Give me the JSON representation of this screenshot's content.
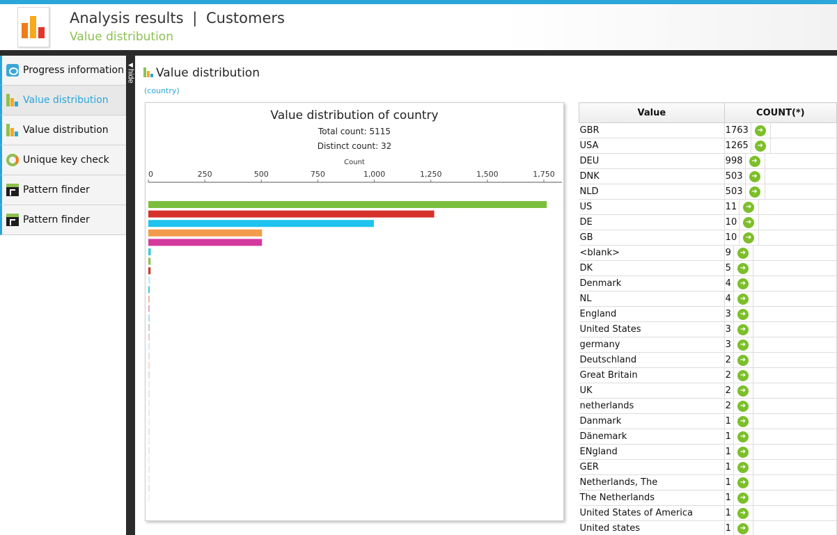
{
  "header": {
    "title": "Analysis results",
    "separator": "|",
    "title_name": "Customers",
    "subtitle": "Value distribution"
  },
  "sidebar": {
    "hide_label": "hide",
    "items": [
      {
        "label": "Progress information",
        "icon": "progress-icon"
      },
      {
        "label": "Value distribution",
        "icon": "value-distribution-icon",
        "active": true
      },
      {
        "label": "Value distribution",
        "icon": "value-distribution-icon"
      },
      {
        "label": "Unique key check",
        "icon": "unique-key-icon"
      },
      {
        "label": "Pattern finder",
        "icon": "pattern-finder-icon"
      },
      {
        "label": "Pattern finder",
        "icon": "pattern-finder-icon"
      }
    ]
  },
  "main": {
    "title": "Value distribution",
    "column": "(country)"
  },
  "chart_data": {
    "type": "bar",
    "orientation": "horizontal",
    "title": "Value distribution of country",
    "subtitle_1": "Total count: 5115",
    "subtitle_2": "Distinct count: 32",
    "xlabel": "Count",
    "xlim": [
      0,
      1800
    ],
    "x_ticks": [
      "0",
      "250",
      "500",
      "750",
      "1,000",
      "1,250",
      "1,500",
      "1,750"
    ],
    "x_tick_values": [
      0,
      250,
      500,
      750,
      1000,
      1250,
      1500,
      1750
    ],
    "values": [
      1763,
      1265,
      998,
      503,
      503,
      11,
      10,
      10,
      9,
      5,
      4,
      4,
      3,
      3,
      3,
      2,
      2,
      2,
      2,
      1,
      1,
      1,
      1,
      1,
      1,
      1,
      1,
      1,
      1,
      1,
      1,
      1
    ],
    "colors": [
      "#7cbf3f",
      "#d6302a",
      "#1ec3ee",
      "#f29b4a",
      "#d43a9e",
      "#3ec7dd",
      "#8cc152",
      "#c43a2a",
      "#cfe8f2",
      "#3ec7dd",
      "#f3b6a0",
      "#e4a7c9",
      "#a9dbe6",
      "#c9c9c9",
      "#e7c6d6",
      "#d6e8f3",
      "#e2e2e2",
      "#f2dcc9",
      "#dcdcdc",
      "#ececec",
      "#e6e6e6",
      "#ededed",
      "#e9e9e9",
      "#efefef",
      "#e4e4e4",
      "#eeeeee",
      "#e8e8e8",
      "#f0f0f0",
      "#eaeaea",
      "#ebebeb",
      "#e5e5e5",
      "#f1f1f1"
    ]
  },
  "table": {
    "headers": [
      "Value",
      "COUNT(*)"
    ],
    "rows": [
      {
        "value": "GBR",
        "count": "1763"
      },
      {
        "value": "USA",
        "count": "1265"
      },
      {
        "value": "DEU",
        "count": "998"
      },
      {
        "value": "DNK",
        "count": "503"
      },
      {
        "value": "NLD",
        "count": "503"
      },
      {
        "value": "US",
        "count": "11"
      },
      {
        "value": "DE",
        "count": "10"
      },
      {
        "value": "GB",
        "count": "10"
      },
      {
        "value": "<blank>",
        "count": "9"
      },
      {
        "value": "DK",
        "count": "5"
      },
      {
        "value": "Denmark",
        "count": "4"
      },
      {
        "value": "NL",
        "count": "4"
      },
      {
        "value": "England",
        "count": "3"
      },
      {
        "value": "United States",
        "count": "3"
      },
      {
        "value": "germany",
        "count": "3"
      },
      {
        "value": "Deutschland",
        "count": "2"
      },
      {
        "value": "Great Britain",
        "count": "2"
      },
      {
        "value": "UK",
        "count": "2"
      },
      {
        "value": "netherlands",
        "count": "2"
      },
      {
        "value": "Danmark",
        "count": "1"
      },
      {
        "value": "Dänemark",
        "count": "1"
      },
      {
        "value": "ENgland",
        "count": "1"
      },
      {
        "value": "GER",
        "count": "1"
      },
      {
        "value": "Netherlands, The",
        "count": "1"
      },
      {
        "value": "The Netherlands",
        "count": "1"
      },
      {
        "value": "United States of America",
        "count": "1"
      },
      {
        "value": "United states",
        "count": "1"
      }
    ]
  }
}
